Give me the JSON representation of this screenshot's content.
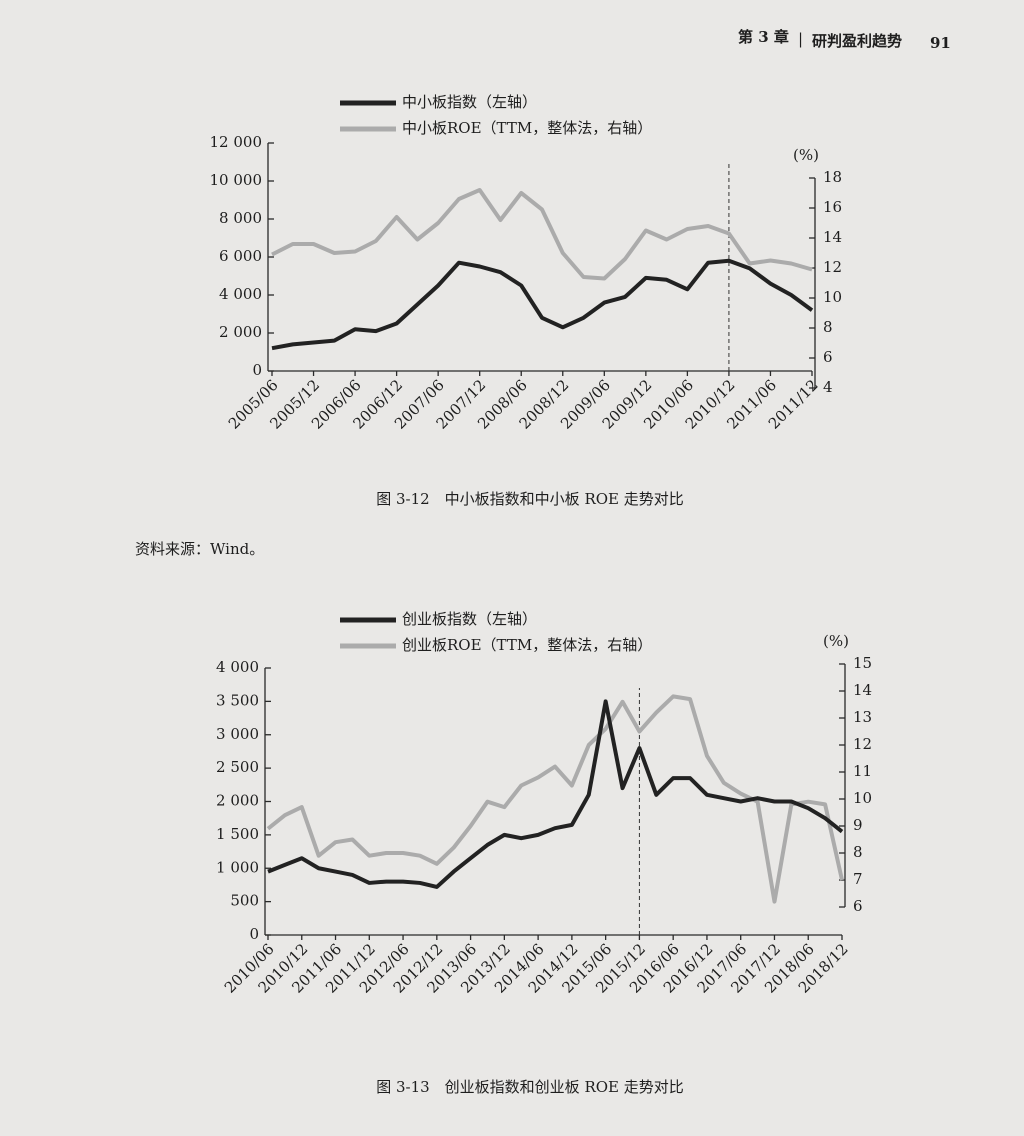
{
  "header": {
    "chapter": "第 3 章",
    "section": "研判盈利趋势",
    "page": "91"
  },
  "chart_data": [
    {
      "type": "line",
      "title": "图 3-12　中小板指数和中小板 ROE 走势对比",
      "source": "资料来源：Wind。",
      "categories": [
        "2005/06",
        null,
        "2005/12",
        null,
        "2006/06",
        null,
        "2006/12",
        null,
        "2007/06",
        null,
        "2007/12",
        null,
        "2008/06",
        null,
        "2008/12",
        null,
        "2009/06",
        null,
        "2009/12",
        null,
        "2010/06",
        null,
        "2010/12",
        null,
        "2011/06",
        null,
        "2011/12"
      ],
      "series": [
        {
          "name": "中小板指数（左轴）",
          "color": "#222222",
          "values": [
            1200,
            1400,
            1500,
            1600,
            2200,
            2100,
            2500,
            3500,
            4500,
            5700,
            5500,
            5200,
            4500,
            2800,
            2300,
            2800,
            3600,
            3900,
            4900,
            4800,
            4300,
            5700,
            5800,
            5400,
            4600,
            4000,
            3200
          ]
        },
        {
          "name": "中小板ROE（TTM，整体法，右轴）",
          "color": "#ababab",
          "axis": "y2",
          "values": [
            12.9,
            13.6,
            13.6,
            13.0,
            13.1,
            13.8,
            15.4,
            13.9,
            15.0,
            16.6,
            17.2,
            15.2,
            17.0,
            15.9,
            13.0,
            11.4,
            11.3,
            12.6,
            14.5,
            13.9,
            14.6,
            14.8,
            14.3,
            12.3,
            12.5,
            12.3,
            11.9
          ]
        }
      ],
      "ylim": [
        0,
        12000
      ],
      "yticks": [
        0,
        {
          "value": 2000,
          "label": "2 000"
        },
        {
          "value": 4000,
          "label": "4 000"
        },
        {
          "value": 6000,
          "label": "6 000"
        },
        {
          "value": 8000,
          "label": "8 000"
        },
        {
          "value": 10000,
          "label": "10 000"
        },
        {
          "value": 12000,
          "label": "12 000"
        }
      ],
      "y2lim": [
        4,
        18
      ],
      "y2ticks": [
        4,
        6,
        8,
        10,
        12,
        14,
        16,
        18
      ],
      "y2label": "(%)",
      "vline": "2010/12"
    },
    {
      "type": "line",
      "title": "图 3-13　创业板指数和创业板 ROE 走势对比",
      "categories": [
        "2010/06",
        null,
        "2010/12",
        null,
        "2011/06",
        null,
        "2011/12",
        null,
        "2012/06",
        null,
        "2012/12",
        null,
        "2013/06",
        null,
        "2013/12",
        null,
        "2014/06",
        null,
        "2014/12",
        null,
        "2015/06",
        null,
        "2015/12",
        null,
        "2016/06",
        null,
        "2016/12",
        null,
        "2017/06",
        null,
        "2017/12",
        null,
        "2018/06",
        null,
        "2018/12"
      ],
      "series": [
        {
          "name": "创业板指数（左轴）",
          "color": "#222222",
          "values": [
            950,
            1050,
            1150,
            1000,
            950,
            900,
            780,
            800,
            800,
            780,
            720,
            950,
            1150,
            1350,
            1500,
            1450,
            1500,
            1600,
            1650,
            2100,
            3500,
            2200,
            2800,
            2100,
            2350,
            2350,
            2100,
            2050,
            2000,
            2050,
            2000,
            2000,
            1900,
            1750,
            1550
          ]
        },
        {
          "name": "创业板ROE（TTM，整体法，右轴）",
          "color": "#ababab",
          "axis": "y2",
          "values": [
            8.9,
            9.4,
            9.7,
            7.9,
            8.4,
            8.5,
            7.9,
            8.0,
            8.0,
            7.9,
            7.6,
            8.2,
            9.0,
            9.9,
            9.7,
            10.5,
            10.8,
            11.2,
            10.5,
            12.0,
            12.6,
            13.6,
            12.5,
            13.2,
            13.8,
            13.7,
            11.6,
            10.6,
            10.2,
            9.9,
            6.2,
            9.8,
            9.9,
            9.8,
            7.0
          ]
        }
      ],
      "ylim": [
        0,
        4000
      ],
      "yticks": [
        0,
        500,
        {
          "value": 1000,
          "label": "1 000"
        },
        {
          "value": 1500,
          "label": "1 500"
        },
        {
          "value": 2000,
          "label": "2 000"
        },
        {
          "value": 2500,
          "label": "2 500"
        },
        {
          "value": 3000,
          "label": "3 000"
        },
        {
          "value": 3500,
          "label": "3 500"
        },
        {
          "value": 4000,
          "label": "4 000"
        }
      ],
      "y2lim": [
        6,
        15
      ],
      "y2ticks": [
        6,
        7,
        8,
        9,
        10,
        11,
        12,
        13,
        14,
        15
      ],
      "y2label": "(%)",
      "vline": "2015/12"
    }
  ]
}
